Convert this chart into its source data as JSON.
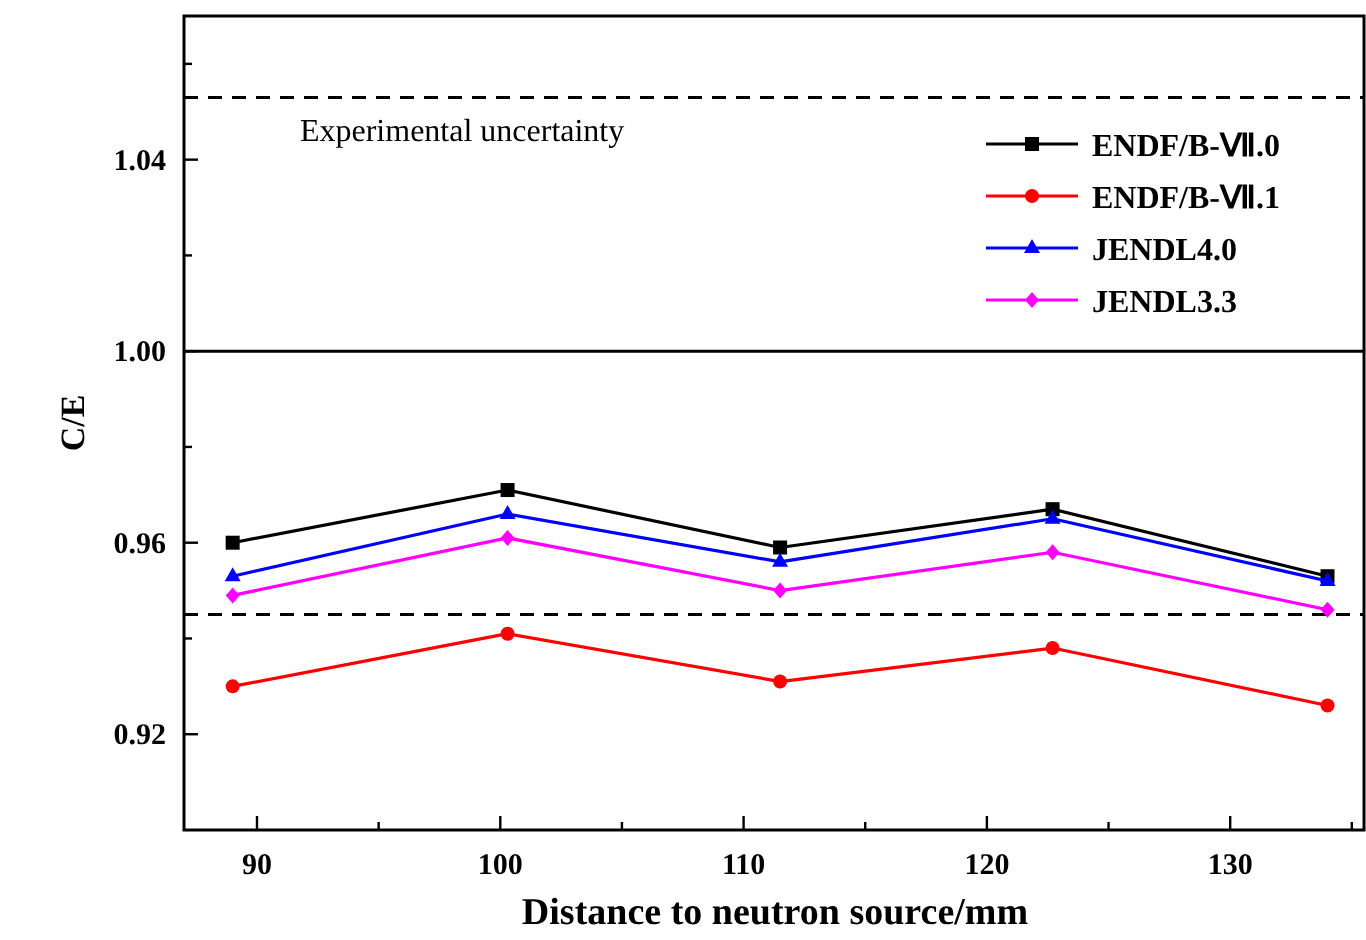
{
  "chart_data": {
    "type": "line",
    "xlabel": "Distance to neutron source/mm",
    "ylabel": "C/E",
    "x": [
      89,
      100.3,
      111.5,
      122.7,
      134
    ],
    "series": [
      {
        "name": "ENDF/B-Ⅶ.0",
        "color": "#000000",
        "marker": "square",
        "values": [
          0.96,
          0.971,
          0.959,
          0.967,
          0.953
        ]
      },
      {
        "name": "ENDF/B-Ⅶ.1",
        "color": "#ff0000",
        "marker": "circle",
        "values": [
          0.93,
          0.941,
          0.931,
          0.938,
          0.926
        ]
      },
      {
        "name": "JENDL4.0",
        "color": "#0000ff",
        "marker": "triangle",
        "values": [
          0.953,
          0.966,
          0.956,
          0.965,
          0.952
        ]
      },
      {
        "name": "JENDL3.3",
        "color": "#ff00ff",
        "marker": "diamond",
        "values": [
          0.949,
          0.961,
          0.95,
          0.958,
          0.946
        ]
      }
    ],
    "xlim": [
      87,
      135.5
    ],
    "xticks": [
      90,
      {
        "value": 95,
        "label": null
      },
      100,
      {
        "value": 105,
        "label": null
      },
      110,
      {
        "value": 115,
        "label": null
      },
      120,
      {
        "value": 125,
        "label": null
      },
      130,
      {
        "value": 135,
        "label": null
      }
    ],
    "ylim": [
      0.9,
      1.07
    ],
    "yticks": [
      {
        "value": 0.92,
        "label": "0.92"
      },
      {
        "value": 0.94,
        "label": null
      },
      {
        "value": 0.96,
        "label": "0.96"
      },
      {
        "value": 0.98,
        "label": null
      },
      {
        "value": 1.0,
        "label": "1.00"
      },
      {
        "value": 1.02,
        "label": null
      },
      {
        "value": 1.04,
        "label": "1.04"
      },
      {
        "value": 1.06,
        "label": null
      }
    ],
    "ref_lines": [
      {
        "axis": "y",
        "value": 1.053,
        "color": "#000000",
        "line_style": "dashed"
      },
      {
        "axis": "y",
        "value": 1.0,
        "color": "#000000",
        "line_style": "solid"
      },
      {
        "axis": "y",
        "value": 0.945,
        "color": "#000000",
        "line_style": "dashed"
      }
    ],
    "annotations": [
      {
        "text": "Experimental uncertainty",
        "x": 99,
        "y": 1.053
      }
    ],
    "legend": "top right",
    "grid": false,
    "line_style": "solid"
  }
}
